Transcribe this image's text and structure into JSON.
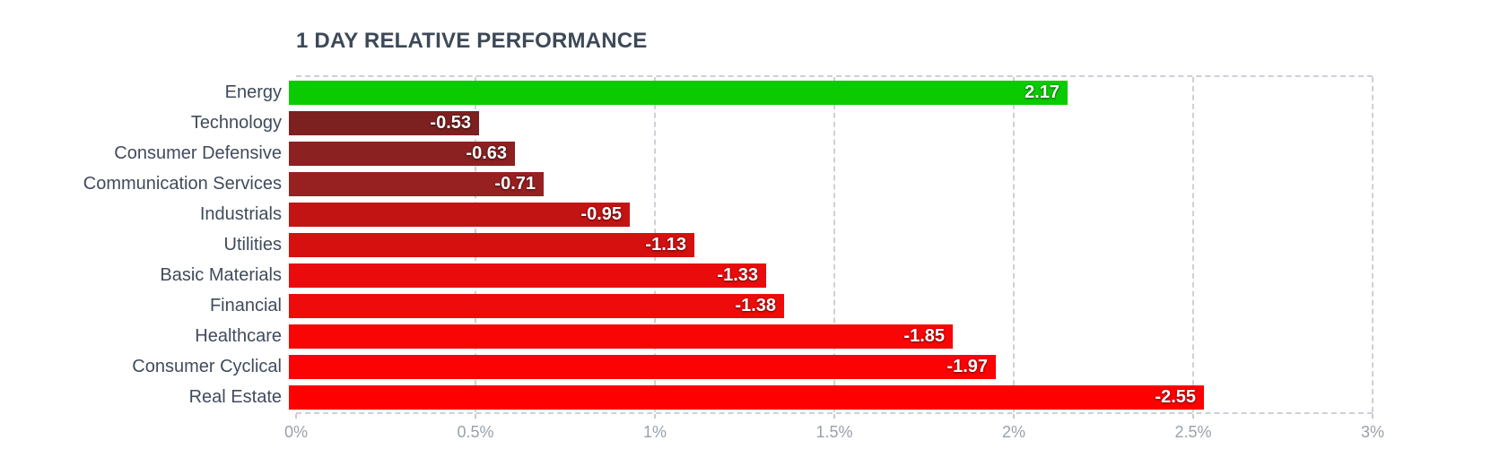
{
  "title": "1 DAY RELATIVE PERFORMANCE",
  "chart_data": {
    "type": "bar",
    "orientation": "horizontal",
    "title": "1 DAY RELATIVE PERFORMANCE",
    "categories": [
      "Energy",
      "Technology",
      "Consumer Defensive",
      "Communication Services",
      "Industrials",
      "Utilities",
      "Basic Materials",
      "Financial",
      "Healthcare",
      "Consumer Cyclical",
      "Real Estate"
    ],
    "values": [
      2.17,
      -0.53,
      -0.63,
      -0.71,
      -0.95,
      -1.13,
      -1.33,
      -1.38,
      -1.85,
      -1.97,
      -2.55
    ],
    "value_labels": [
      "2.17",
      "-0.53",
      "-0.63",
      "-0.71",
      "-0.95",
      "-1.13",
      "-1.33",
      "-1.38",
      "-1.85",
      "-1.97",
      "-2.55"
    ],
    "bar_colors": [
      "#0bcb00",
      "#7d2020",
      "#8b2121",
      "#972020",
      "#c31414",
      "#d60f0f",
      "#ea0c0c",
      "#ee0b0b",
      "#fa0505",
      "#fd0202",
      "#ff0000"
    ],
    "xlabel": "",
    "ylabel": "",
    "x_axis": {
      "min": 0,
      "max": 3,
      "tick_values": [
        0,
        0.5,
        1,
        1.5,
        2,
        2.5,
        3
      ],
      "ticks": [
        "0%",
        "0.5%",
        "1%",
        "1.5%",
        "2%",
        "2.5%",
        "3%"
      ],
      "note": "bars are drawn at absolute value magnitude; sign shown in data label"
    },
    "grid": "dashed vertical gridlines at 0.5% steps; dashed top and bottom plot borders; no left border",
    "legend": "none"
  },
  "colors": {
    "background": "#ffffff",
    "title_text": "#3d4957",
    "category_text": "#3f4b5c",
    "tick_text": "#99a1ab",
    "grid_line": "#cdd0d8",
    "positive_bar": "#0bcb00",
    "negative_bar_max": "#ff0000",
    "negative_bar_min": "#7d2020",
    "value_text": "#ffffff"
  }
}
